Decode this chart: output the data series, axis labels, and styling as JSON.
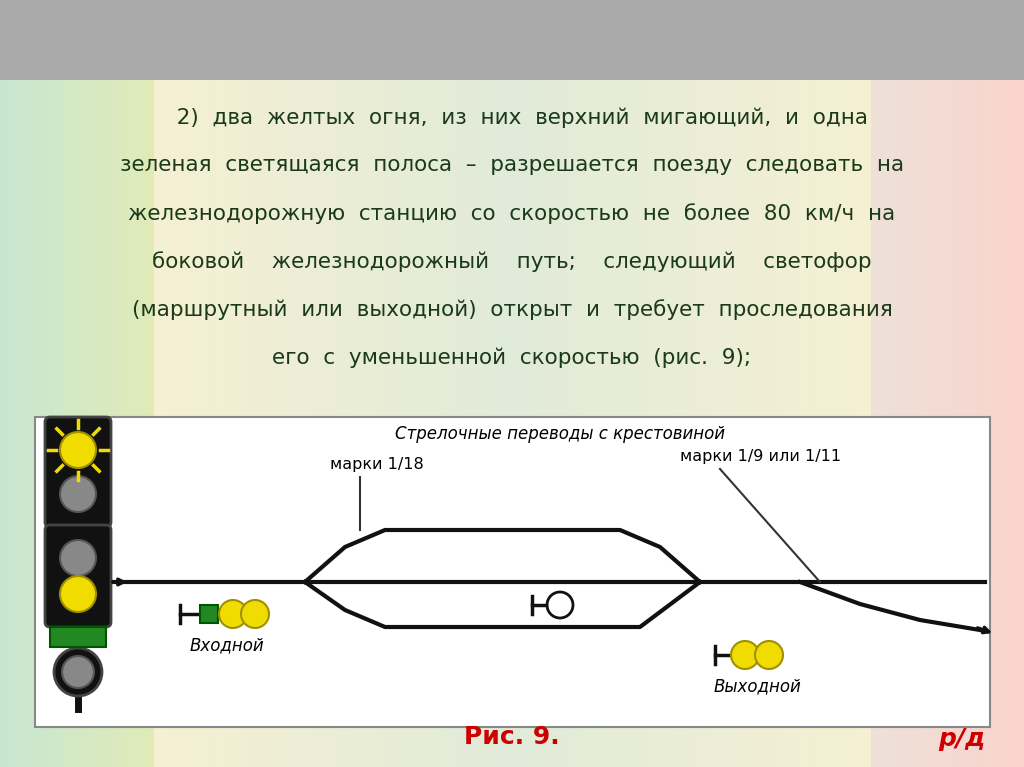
{
  "bg_top": "#b0b0b0",
  "bg_gradient_left": "#c8e8d8",
  "bg_gradient_right": "#f0c8d8",
  "bg_gradient_center": "#e8e8d0",
  "text_area_bg": "#e8f0e0",
  "diagram_bg": "#ffffff",
  "main_text_line1": "   2)  два  желтых  огня,  из  них  верхний  мигающий,  и  одна",
  "main_text_line2": "зеленая  светящаяся  полоса  –  разрешается  поезду  следовать  на",
  "main_text_line3": "железнодорожную  станцию  со  скоростью  не  более  80  км/ч  на",
  "main_text_line4": "боковой    железнодорожный    путь;    следующий    светофор",
  "main_text_line5": "(маршрутный  или  выходной)  открыт  и  требует  проследования",
  "main_text_line6": "его  с  уменьшенной  скоростью  (рис.  9);",
  "caption": "Рис. 9.",
  "label_strelochnye": "Стрелочные переводы с крестовиной",
  "label_marki_118": "марки 1/18",
  "label_marki_19": "марки 1/9 или 1/11",
  "label_vkhodnoy": "Входной",
  "label_vykhodnoy": "Выходной",
  "yellow_color": "#f0dc00",
  "green_color": "#228822",
  "dark_color": "#111111",
  "gray_color": "#888888",
  "line_color": "#111111",
  "text_color": "#1a3a1a",
  "caption_color": "#cc0000",
  "rzd_color": "#cc0000"
}
